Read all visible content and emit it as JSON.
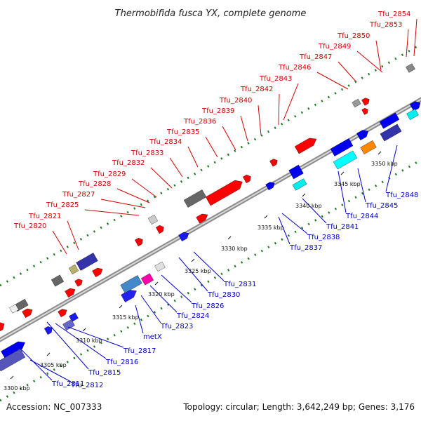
{
  "title": "Thermobifida fusca YX, complete genome",
  "accession": "Accession: NC_007333",
  "summary": "Topology: circular; Length: 3,642,249 bp; Genes: 3,176",
  "colors": {
    "top_label": "#d40000",
    "bottom_label": "#0000cc",
    "axis": "#999999",
    "dots": "#1a7a1a"
  },
  "top_genes": [
    "Tfu_2820",
    "Tfu_2821",
    "Tfu_2825",
    "Tfu_2827",
    "Tfu_2828",
    "Tfu_2829",
    "Tfu_2832",
    "Tfu_2833",
    "Tfu_2834",
    "Tfu_2835",
    "Tfu_2836",
    "Tfu_2839",
    "Tfu_2840",
    "Tfu_2842",
    "Tfu_2843",
    "Tfu_2846",
    "Tfu_2847",
    "Tfu_2849",
    "Tfu_2850",
    "Tfu_2853",
    "Tfu_2854"
  ],
  "bottom_genes": [
    "Tfu_2811",
    "Tfu_2812",
    "Tfu_2815",
    "Tfu_2816",
    "Tfu_2817",
    "metX",
    "Tfu_2823",
    "Tfu_2824",
    "Tfu_2826",
    "Tfu_2830",
    "Tfu_2831",
    "Tfu_2837",
    "Tfu_2838",
    "Tfu_2841",
    "Tfu_2844",
    "Tfu_2845",
    "Tfu_2848"
  ],
  "ticks": [
    "3300 kbp",
    "3305 kbp",
    "3310 kbp",
    "3315 kbp",
    "3320 kbp",
    "3325 kbp",
    "3330 kbp",
    "3335 kbp",
    "3340 kbp",
    "3345 kbp",
    "3350 kbp"
  ]
}
